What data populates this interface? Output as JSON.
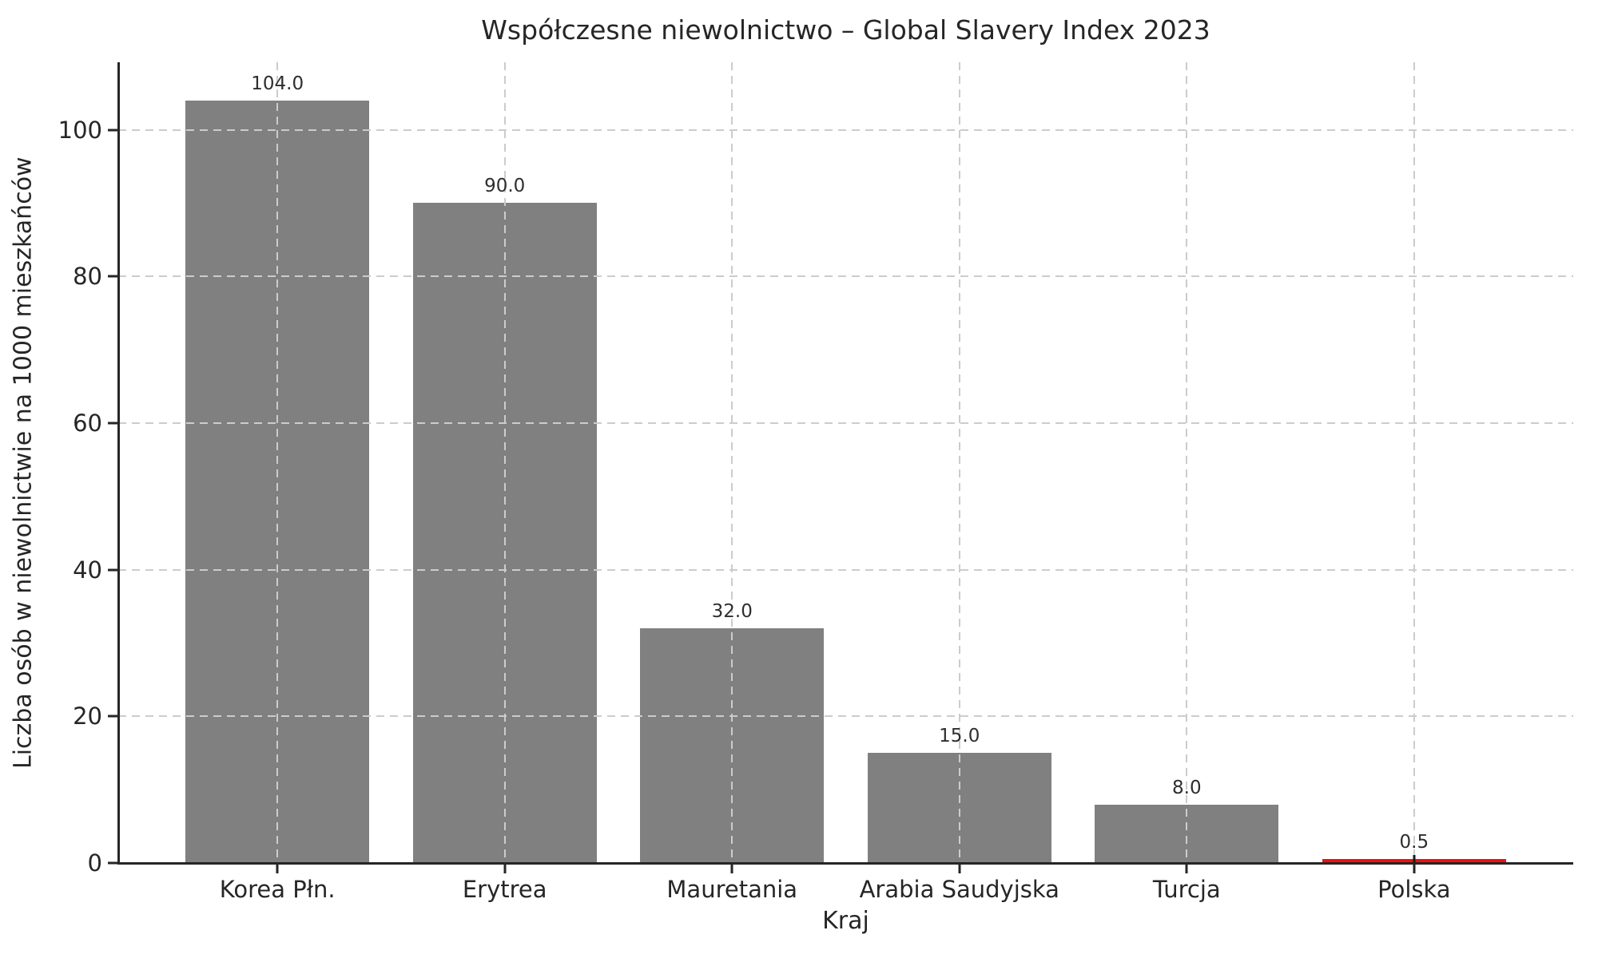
{
  "figure": {
    "background": "#ffffff"
  },
  "chart_data": {
    "type": "bar",
    "title": "Współczesne niewolnictwo – Global Slavery Index 2023",
    "xlabel": "Kraj",
    "ylabel": "Liczba osób w niewolnictwie na 1000 mieszkańców",
    "categories": [
      "Korea Płn.",
      "Erytrea",
      "Mauretania",
      "Arabia Saudyjska",
      "Turcja",
      "Polska"
    ],
    "values": [
      104.0,
      90.0,
      32.0,
      15.0,
      8.0,
      0.5
    ],
    "value_labels": [
      "104.0",
      "90.0",
      "32.0",
      "15.0",
      "8.0",
      "0.5"
    ],
    "yticks": [
      0,
      20,
      40,
      60,
      80,
      100
    ],
    "ylim": [
      0,
      109.2
    ],
    "bar_default_color": "#808080",
    "highlight_index": 5,
    "highlight_color": "#f01010",
    "grid": true,
    "grid_style": "dashed",
    "grid_color": "#cccccc",
    "axis_color": "#262626",
    "text_color": "#262626",
    "legend": null
  }
}
